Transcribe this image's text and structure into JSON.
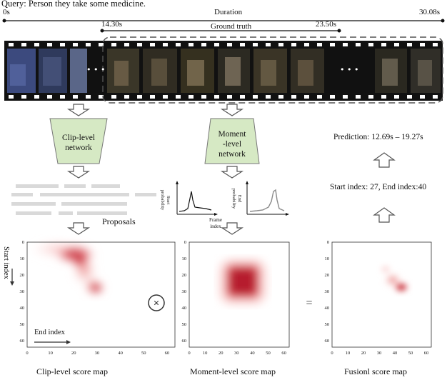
{
  "query": "Query: Person they take some medicine.",
  "timeline": {
    "start_label": "0s",
    "end_label": "30.08s",
    "duration_label": "Duration",
    "gt_start_label": "14.30s",
    "gt_end_label": "23.50s",
    "gt_label": "Ground truth"
  },
  "film": {
    "ellipsis_left": "• • •",
    "ellipsis_right": "• • •"
  },
  "clip_network": {
    "line1": "Clip-level",
    "line2": "network"
  },
  "moment_network": {
    "line1": "Moment",
    "line2": "-level",
    "line3": "network"
  },
  "proposals_label": "Proposals",
  "start_plot": {
    "ylabel_line1": "Start",
    "ylabel_line2": "probability"
  },
  "end_plot": {
    "ylabel_line1": "End",
    "ylabel_line2": "probability"
  },
  "frame_index_label": {
    "line1": "Frame",
    "line2": "index"
  },
  "prediction": "Prediction: 12.69s – 19.27s",
  "indices": "Start index: 27, End index:40",
  "start_index_label": "Start index",
  "end_index_label": "End index",
  "maps": {
    "ticks": [
      "0",
      "10",
      "20",
      "30",
      "40",
      "50",
      "60"
    ],
    "clip_title": "Clip-level score map",
    "moment_title": "Moment-level score map",
    "fusion_title": "Fusionl score map"
  },
  "operators": {
    "multiply": "×",
    "equals": "="
  },
  "colors": {
    "network_fill": "#d6e9c4",
    "heat_dark": "#b2182b",
    "heat_light": "#fde0dd"
  }
}
